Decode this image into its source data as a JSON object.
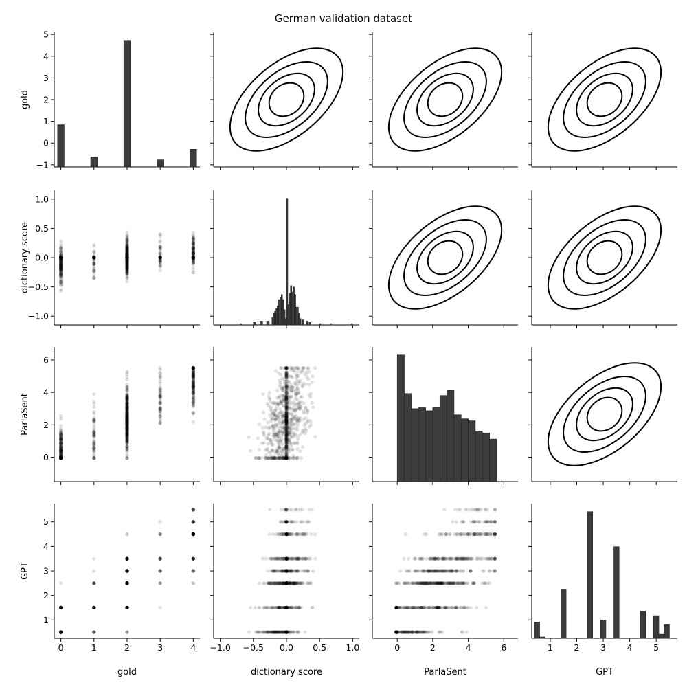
{
  "chart_data": {
    "type": "pairplot",
    "title": "German validation dataset",
    "variables": [
      "gold",
      "dictionary score",
      "ParlaSent",
      "GPT"
    ],
    "diag_kind": "hist",
    "lower_kind": "scatter",
    "upper_kind": "kde",
    "color": "#3c3c3c",
    "axes": {
      "gold": {
        "lim": [
          -0.2,
          4.2
        ],
        "ticks": [
          0,
          1,
          2,
          3,
          4
        ],
        "tick_labels": [
          "0",
          "1",
          "2",
          "3",
          "4"
        ]
      },
      "dictionary score": {
        "lim": [
          -1.1,
          1.1
        ],
        "ticks": [
          -1.0,
          -0.5,
          0.0,
          0.5,
          1.0
        ],
        "tick_labels": [
          "−1.0",
          "−0.5",
          "0.0",
          "0.5",
          "1.0"
        ]
      },
      "ParlaSent": {
        "lim": [
          -1.4,
          6.8
        ],
        "ticks": [
          0,
          2,
          4,
          6
        ],
        "tick_labels": [
          "0",
          "2",
          "4",
          "6"
        ]
      },
      "GPT": {
        "lim": [
          0.3,
          5.8
        ],
        "ticks": [
          1,
          2,
          3,
          4,
          5
        ],
        "tick_labels": [
          "1",
          "2",
          "3",
          "4",
          "5"
        ]
      }
    },
    "y_axis_for_gold_row": {
      "lim": [
        -1.1,
        5.1
      ],
      "ticks": [
        -1,
        0,
        1,
        2,
        3,
        4,
        5
      ],
      "tick_labels": [
        "−1",
        "0",
        "1",
        "2",
        "3",
        "4",
        "5"
      ]
    },
    "y_axis_for_dict_row": {
      "lim": [
        -1.15,
        1.15
      ],
      "ticks": [
        -1.0,
        -0.5,
        0.0,
        0.5,
        1.0
      ],
      "tick_labels": [
        "−1.0",
        "−0.5",
        "0.0",
        "0.5",
        "1.0"
      ]
    },
    "y_axis_for_parla_row": {
      "lim": [
        -1.5,
        6.8
      ],
      "ticks": [
        0,
        2,
        4,
        6
      ],
      "tick_labels": [
        "0",
        "2",
        "4",
        "6"
      ]
    },
    "y_axis_for_gpt_row": {
      "lim": [
        0.25,
        5.75
      ],
      "ticks": [
        1,
        2,
        3,
        4,
        5
      ],
      "tick_labels": [
        "1",
        "2",
        "3",
        "4",
        "5"
      ]
    },
    "diagonal_histograms": {
      "gold": {
        "bins": [
          [
            -0.1,
            0.1,
            1.6
          ],
          [
            0.9,
            1.1,
            0.38
          ],
          [
            1.9,
            2.1,
            4.8
          ],
          [
            2.9,
            3.1,
            0.27
          ],
          [
            3.9,
            4.1,
            0.67
          ]
        ]
      },
      "dictionary score": {
        "bins": [
          [
            -0.7,
            -0.68,
            0.01
          ],
          [
            -0.5,
            -0.46,
            0.02
          ],
          [
            -0.4,
            -0.36,
            0.03
          ],
          [
            -0.3,
            -0.26,
            0.03
          ],
          [
            -0.22,
            -0.2,
            0.06
          ],
          [
            -0.2,
            -0.18,
            0.09
          ],
          [
            -0.18,
            -0.16,
            0.11
          ],
          [
            -0.16,
            -0.14,
            0.13
          ],
          [
            -0.14,
            -0.12,
            0.15
          ],
          [
            -0.12,
            -0.1,
            0.2
          ],
          [
            -0.1,
            -0.08,
            0.22
          ],
          [
            -0.08,
            -0.06,
            0.24
          ],
          [
            -0.06,
            -0.04,
            0.2
          ],
          [
            -0.04,
            -0.02,
            0.12
          ],
          [
            -0.02,
            0.0,
            0.05
          ],
          [
            0.0,
            0.02,
            1.0
          ],
          [
            0.02,
            0.04,
            0.16
          ],
          [
            0.04,
            0.06,
            0.25
          ],
          [
            0.06,
            0.08,
            0.31
          ],
          [
            0.08,
            0.1,
            0.26
          ],
          [
            0.1,
            0.12,
            0.3
          ],
          [
            0.12,
            0.14,
            0.24
          ],
          [
            0.14,
            0.16,
            0.14
          ],
          [
            0.16,
            0.18,
            0.14
          ],
          [
            0.18,
            0.2,
            0.09
          ],
          [
            0.2,
            0.22,
            0.05
          ],
          [
            0.24,
            0.26,
            0.04
          ],
          [
            0.3,
            0.32,
            0.03
          ],
          [
            0.34,
            0.36,
            0.02
          ],
          [
            0.5,
            0.52,
            0.01
          ],
          [
            0.66,
            0.68,
            0.01
          ],
          [
            0.98,
            1.0,
            0.01
          ]
        ]
      },
      "ParlaSent": {
        "bins": [
          [
            0.0,
            0.4,
            1.25
          ],
          [
            0.4,
            0.8,
            0.87
          ],
          [
            0.8,
            1.2,
            0.72
          ],
          [
            1.2,
            1.6,
            0.73
          ],
          [
            1.6,
            2.0,
            0.7
          ],
          [
            2.0,
            2.4,
            0.73
          ],
          [
            2.4,
            2.8,
            0.85
          ],
          [
            2.8,
            3.2,
            0.9
          ],
          [
            3.2,
            3.6,
            0.66
          ],
          [
            3.6,
            4.0,
            0.62
          ],
          [
            4.0,
            4.4,
            0.6
          ],
          [
            4.4,
            4.8,
            0.5
          ],
          [
            4.8,
            5.2,
            0.48
          ],
          [
            5.2,
            5.6,
            0.42
          ]
        ]
      },
      "GPT": {
        "bins": [
          [
            0.4,
            0.6,
            0.6
          ],
          [
            0.6,
            0.8,
            0.05
          ],
          [
            1.4,
            1.6,
            1.8
          ],
          [
            2.4,
            2.6,
            4.7
          ],
          [
            2.9,
            3.1,
            0.68
          ],
          [
            3.4,
            3.6,
            3.4
          ],
          [
            4.4,
            4.6,
            1.0
          ],
          [
            4.9,
            5.1,
            0.84
          ],
          [
            5.1,
            5.3,
            0.15
          ],
          [
            5.3,
            5.5,
            0.5
          ]
        ]
      }
    }
  }
}
